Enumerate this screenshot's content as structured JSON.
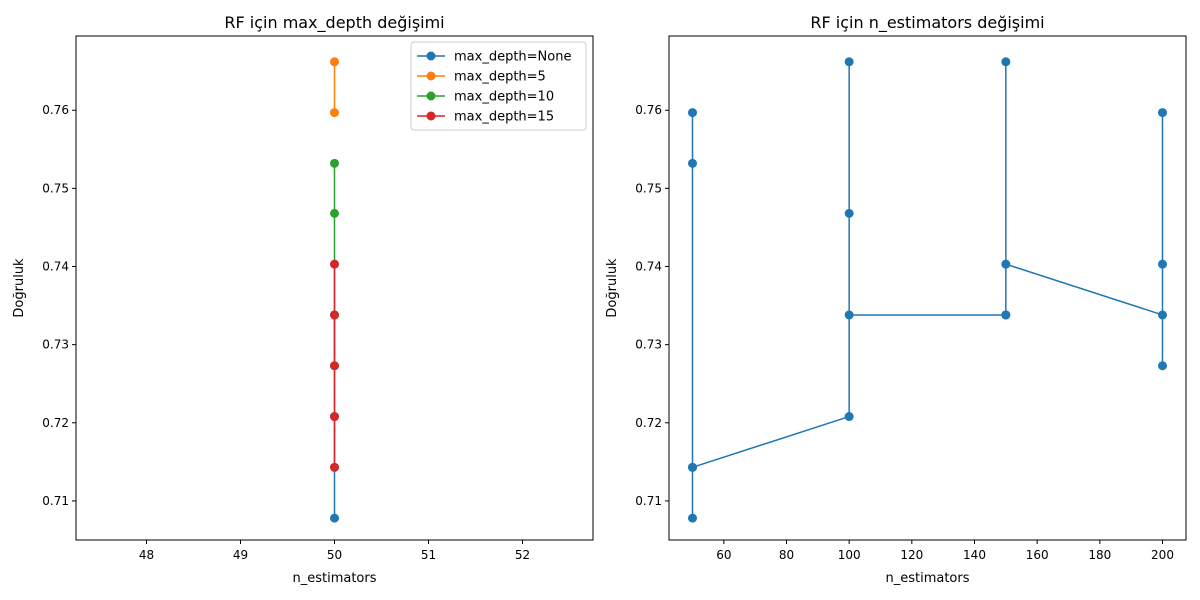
{
  "chart_data": [
    {
      "type": "line",
      "title": "RF için max_depth değişimi",
      "xlabel": "n_estimators",
      "ylabel": "Doğruluk",
      "xlim": [
        47.25,
        52.75
      ],
      "ylim": [
        0.705,
        0.7695
      ],
      "x_ticks": [
        48,
        49,
        50,
        51,
        52
      ],
      "y_ticks": [
        0.71,
        0.72,
        0.73,
        0.74,
        0.75,
        0.76
      ],
      "grid": false,
      "legend_position": "top-right",
      "series": [
        {
          "name": "max_depth=None",
          "color": "#1f77b4",
          "x": [
            50,
            50,
            50,
            50
          ],
          "y": [
            0.7078,
            0.7208,
            0.7338,
            0.7143
          ]
        },
        {
          "name": "max_depth=5",
          "color": "#ff7f0e",
          "x": [
            50,
            50
          ],
          "y": [
            0.7662,
            0.7597
          ]
        },
        {
          "name": "max_depth=10",
          "color": "#2ca02c",
          "x": [
            50,
            50,
            50,
            50
          ],
          "y": [
            0.7532,
            0.7468,
            0.7273,
            0.7338
          ]
        },
        {
          "name": "max_depth=15",
          "color": "#d62728",
          "x": [
            50,
            50,
            50,
            50,
            50
          ],
          "y": [
            0.7403,
            0.7338,
            0.7273,
            0.7208,
            0.7143
          ]
        }
      ]
    },
    {
      "type": "line",
      "title": "RF için n_estimators değişimi",
      "xlabel": "n_estimators",
      "ylabel": "Doğruluk",
      "xlim": [
        42.5,
        207.5
      ],
      "ylim": [
        0.705,
        0.7695
      ],
      "x_ticks": [
        60,
        80,
        100,
        120,
        140,
        160,
        180,
        200
      ],
      "y_ticks": [
        0.71,
        0.72,
        0.73,
        0.74,
        0.75,
        0.76
      ],
      "grid": false,
      "series": [
        {
          "color": "#1f77b4",
          "x": [
            50,
            50,
            50,
            50,
            50,
            100,
            100,
            100,
            100,
            150,
            150,
            150,
            150,
            200,
            200,
            200,
            200
          ],
          "y": [
            0.7078,
            0.7597,
            0.7532,
            0.7143,
            0.7143,
            0.7208,
            0.7662,
            0.7468,
            0.7338,
            0.7338,
            0.7662,
            0.7338,
            0.7403,
            0.7338,
            0.7597,
            0.7273,
            0.7403
          ]
        }
      ]
    }
  ]
}
